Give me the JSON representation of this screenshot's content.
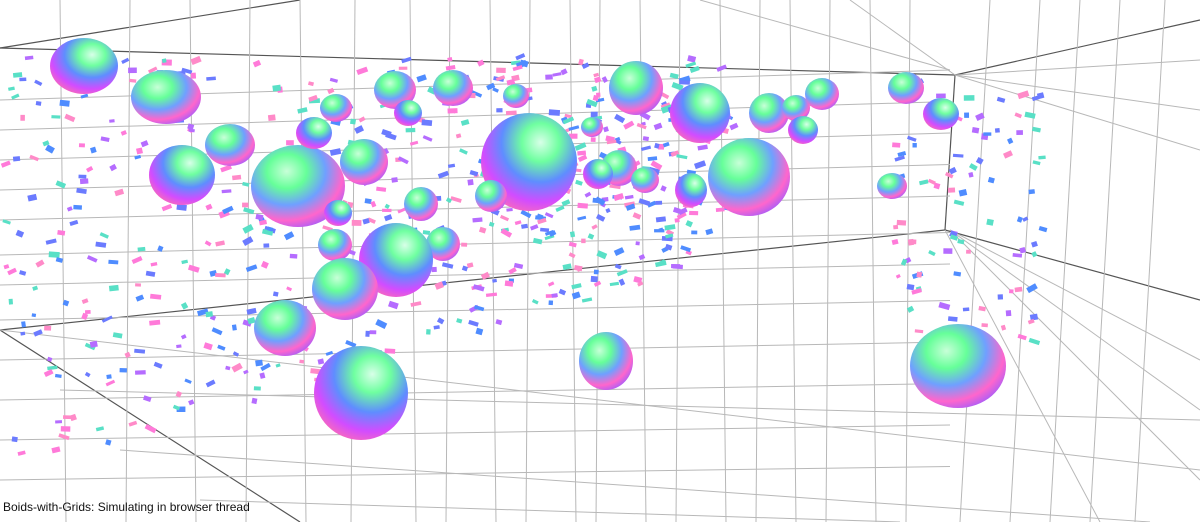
{
  "status": {
    "text": "Boids-with-Grids: Simulating in browser thread"
  },
  "scene": {
    "background_color": "#ffffff",
    "grid_color": "#b8b8b8",
    "grid_strong_color": "#555555",
    "boid_colors": [
      "#6b7bff",
      "#ff7ad9",
      "#59e0c6",
      "#b56cff",
      "#ff8ac8",
      "#4f8cff"
    ],
    "obstacle_gradient": [
      "#66ff99",
      "#6fa0ff",
      "#ff66cc",
      "#9d5cff"
    ]
  }
}
